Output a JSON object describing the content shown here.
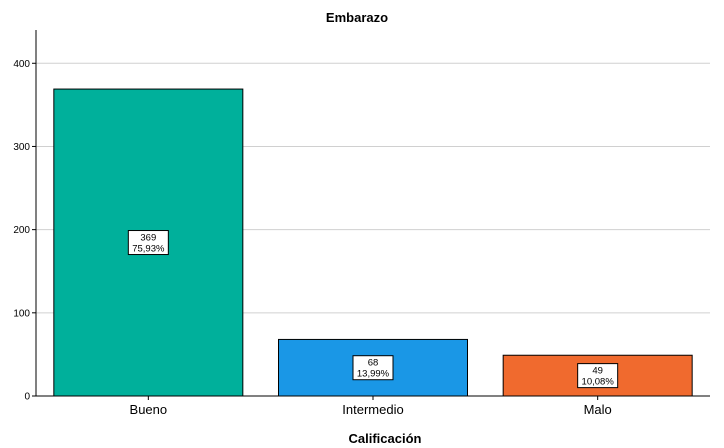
{
  "chart_data": {
    "type": "bar",
    "title": "Embarazo",
    "xlabel": "Calificación",
    "ylabel": "",
    "categories": [
      "Bueno",
      "Intermedio",
      "Malo"
    ],
    "values": [
      369,
      68,
      49
    ],
    "percentages": [
      "75,93%",
      "13,99%",
      "10,08%"
    ],
    "colors": [
      "#00b09b",
      "#1a97e6",
      "#f06a2e"
    ],
    "ylim": [
      0,
      440
    ],
    "yticks": [
      0,
      100,
      200,
      300,
      400
    ],
    "grid": true,
    "legend": "none"
  }
}
